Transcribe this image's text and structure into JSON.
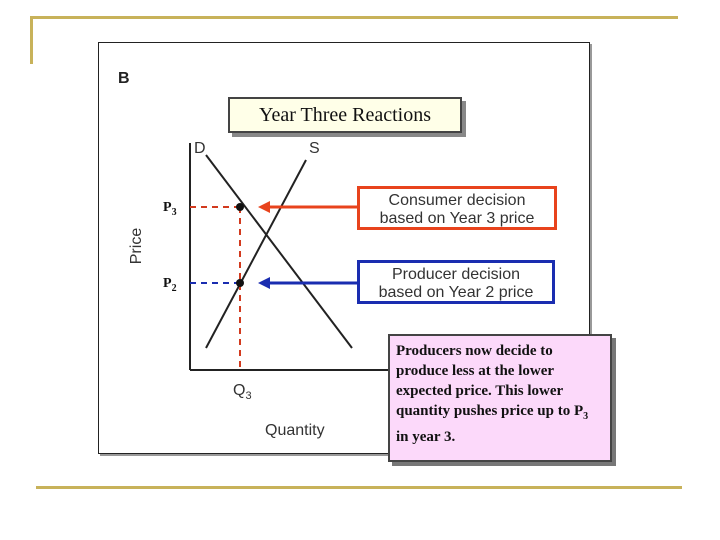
{
  "panel_letter": "B",
  "title": "Year Three Reactions",
  "axes": {
    "price_label": "Price",
    "quantity_label": "Quantity",
    "demand_label": "D",
    "supply_label": "S",
    "q3_base": "Q",
    "q3_sub": "3",
    "p3_base": "P",
    "p3_sub": "3",
    "p2_base": "P",
    "p2_sub": "2"
  },
  "callouts": {
    "consumer": {
      "line1": "Consumer decision",
      "line2": "based on Year 3 price",
      "color": "#e8431c"
    },
    "producer": {
      "line1": "Producer decision",
      "line2": "based on Year 2 price",
      "color": "#1a2db0"
    }
  },
  "note": {
    "text_before": "Producers now decide to produce less at the lower expected price. This lower quantity pushes price up to P",
    "sub": "3",
    "text_after": " in year 3."
  },
  "colors": {
    "accent_gold": "#c8b25a",
    "note_bg": "#fcd9fa",
    "title_bg": "#ffffe8"
  }
}
